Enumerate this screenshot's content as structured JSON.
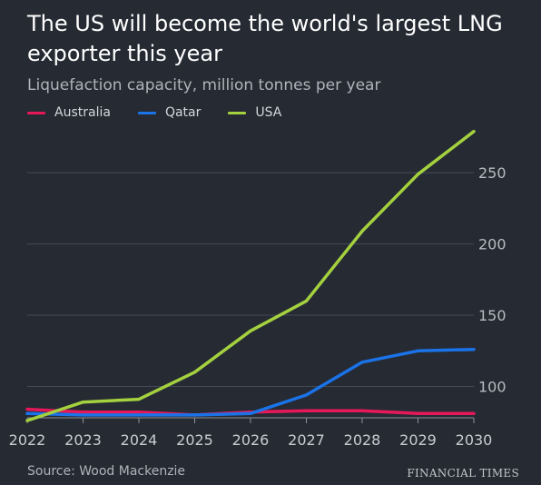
{
  "chart_data": {
    "type": "line",
    "title": "The US will become the world's largest LNG exporter this year",
    "subtitle": "Liquefaction capacity, million tonnes per year",
    "x": [
      2022,
      2023,
      2024,
      2025,
      2026,
      2027,
      2028,
      2029,
      2030
    ],
    "x_tick_labels": [
      "2022",
      "2023",
      "2024",
      "2025",
      "2026",
      "2027",
      "2028",
      "2029",
      "2030"
    ],
    "y_ticks": [
      100,
      150,
      200,
      250
    ],
    "y_tick_labels": [
      "100",
      "150",
      "200",
      "250"
    ],
    "ylim": [
      78,
      282
    ],
    "grid": true,
    "legend_position": "top-left",
    "series": [
      {
        "name": "Australia",
        "color": "#e6185a",
        "values": [
          84,
          82,
          82,
          80,
          82,
          83,
          83,
          81,
          81
        ]
      },
      {
        "name": "Qatar",
        "color": "#1a73e8",
        "values": [
          81,
          80,
          80,
          80,
          81,
          94,
          117,
          125,
          126
        ]
      },
      {
        "name": "USA",
        "color": "#a4d13e",
        "values": [
          76,
          89,
          91,
          110,
          139,
          160,
          209,
          249,
          279
        ]
      }
    ]
  },
  "footer": {
    "source": "Source: Wood Mackenzie",
    "brand": "FINANCIAL TIMES"
  }
}
